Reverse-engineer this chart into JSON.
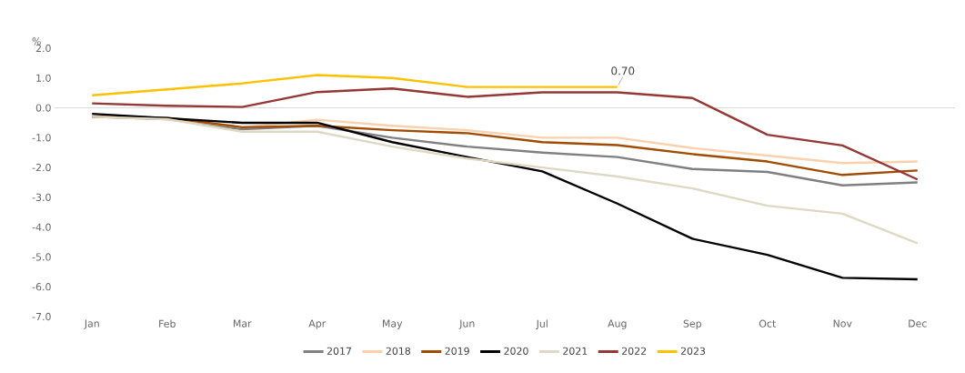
{
  "chart_data": {
    "type": "line",
    "ylabel": "%",
    "categories": [
      "Jan",
      "Feb",
      "Mar",
      "Apr",
      "May",
      "Jun",
      "Jul",
      "Aug",
      "Sep",
      "Oct",
      "Nov",
      "Dec"
    ],
    "series": [
      {
        "name": "2017",
        "color": "#808080",
        "values": [
          -0.3,
          -0.38,
          -0.72,
          -0.6,
          -1.0,
          -1.3,
          -1.5,
          -1.65,
          -2.05,
          -2.15,
          -2.6,
          -2.5
        ]
      },
      {
        "name": "2018",
        "color": "#fbd0ad",
        "values": [
          -0.3,
          -0.35,
          -0.65,
          -0.4,
          -0.6,
          -0.75,
          -1.0,
          -1.0,
          -1.35,
          -1.6,
          -1.85,
          -1.8
        ]
      },
      {
        "name": "2019",
        "color": "#a04b00",
        "values": [
          -0.3,
          -0.33,
          -0.65,
          -0.6,
          -0.75,
          -0.85,
          -1.15,
          -1.25,
          -1.55,
          -1.8,
          -2.25,
          -2.1
        ]
      },
      {
        "name": "2020",
        "color": "#000000",
        "values": [
          -0.2,
          -0.35,
          -0.5,
          -0.5,
          -1.15,
          -1.65,
          -2.13,
          -3.21,
          -4.39,
          -4.93,
          -5.7,
          -5.75
        ]
      },
      {
        "name": "2021",
        "color": "#ddd9c3",
        "values": [
          -0.3,
          -0.38,
          -0.8,
          -0.8,
          -1.3,
          -1.7,
          -2.0,
          -2.3,
          -2.7,
          -3.28,
          -3.55,
          -4.54
        ]
      },
      {
        "name": "2022",
        "color": "#953735",
        "values": [
          0.15,
          0.07,
          0.03,
          0.53,
          0.65,
          0.37,
          0.52,
          0.52,
          0.33,
          -0.9,
          -1.26,
          -2.4
        ]
      },
      {
        "name": "2023",
        "color": "#ffc000",
        "values": [
          0.42,
          0.62,
          0.82,
          1.1,
          1.0,
          0.7,
          0.7,
          0.7,
          null,
          null,
          null,
          null
        ],
        "value_labels": [
          null,
          null,
          null,
          null,
          null,
          null,
          null,
          "0.70",
          null,
          null,
          null,
          null
        ]
      }
    ],
    "ylim": [
      -7.0,
      2.0
    ],
    "yticks": [
      {
        "value": -7,
        "label": "-7.0"
      },
      {
        "value": -6,
        "label": "-6.0"
      },
      {
        "value": -5,
        "label": "-5.0"
      },
      {
        "value": -4,
        "label": "-4.0"
      },
      {
        "value": -3,
        "label": "-3.0"
      },
      {
        "value": -2,
        "label": "-2.0"
      },
      {
        "value": -1,
        "label": "-1.0"
      },
      {
        "value": 0,
        "label": "0.0"
      },
      {
        "value": 1,
        "label": "1.0"
      },
      {
        "value": 2,
        "label": "2.0"
      }
    ],
    "ref_lines": [
      {
        "axis": "y",
        "value": 0,
        "color": "#d9d9d9"
      }
    ],
    "grid": false,
    "legend": "bottom",
    "marker": "none",
    "line_style": "solid"
  }
}
